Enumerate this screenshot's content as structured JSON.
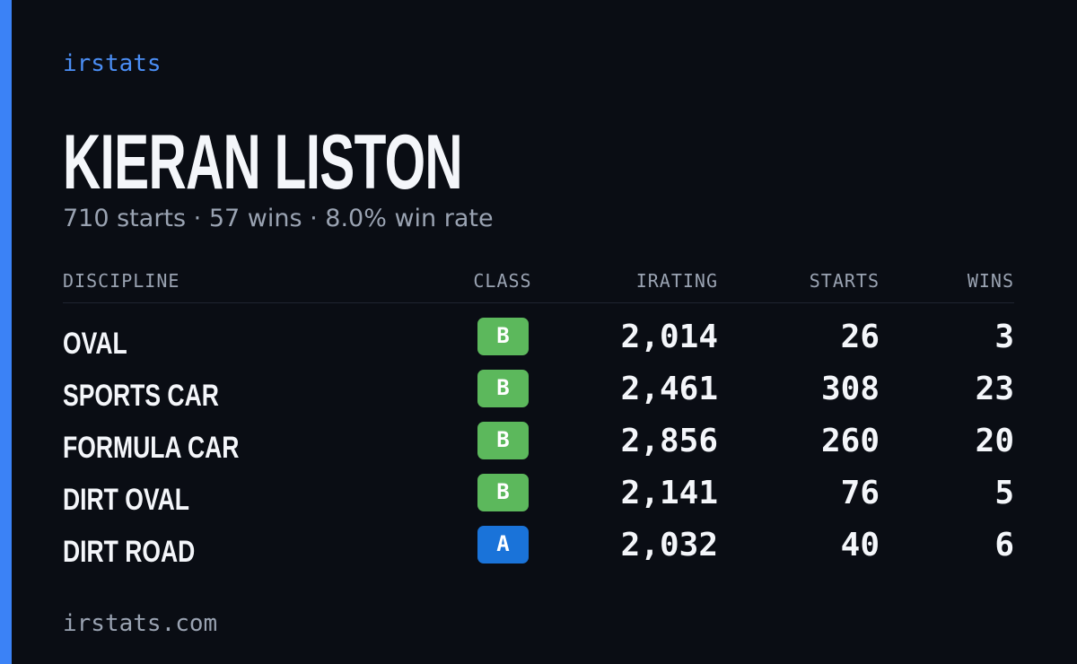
{
  "brand": "irstats",
  "profile": {
    "name": "KIERAN LISTON",
    "summary": "710 starts · 57 wins · 8.0% win rate"
  },
  "table": {
    "headers": [
      "DISCIPLINE",
      "CLASS",
      "IRATING",
      "STARTS",
      "WINS"
    ],
    "rows": [
      {
        "discipline": "OVAL",
        "class": "B",
        "class_color": "#5cb85c",
        "irating": "2,014",
        "starts": "26",
        "wins": "3"
      },
      {
        "discipline": "SPORTS CAR",
        "class": "B",
        "class_color": "#5cb85c",
        "irating": "2,461",
        "starts": "308",
        "wins": "23"
      },
      {
        "discipline": "FORMULA CAR",
        "class": "B",
        "class_color": "#5cb85c",
        "irating": "2,856",
        "starts": "260",
        "wins": "20"
      },
      {
        "discipline": "DIRT OVAL",
        "class": "B",
        "class_color": "#5cb85c",
        "irating": "2,141",
        "starts": "76",
        "wins": "5"
      },
      {
        "discipline": "DIRT ROAD",
        "class": "A",
        "class_color": "#1a73d9",
        "irating": "2,032",
        "starts": "40",
        "wins": "6"
      }
    ]
  },
  "footer": "irstats.com"
}
